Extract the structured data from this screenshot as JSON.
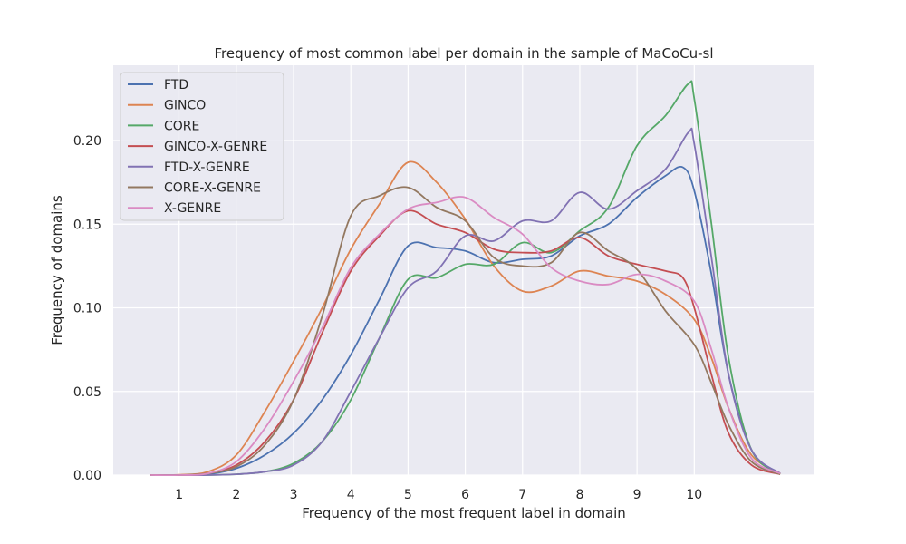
{
  "chart_data": {
    "type": "line",
    "title": "Frequency of most common label per domain in the sample of MaCoCu-sl",
    "xlabel": "Frequency of the most frequent label in domain",
    "ylabel": "Frequency of domains",
    "xlim": [
      -0.15,
      12.1
    ],
    "ylim": [
      0,
      0.245
    ],
    "xticks": [
      1,
      2,
      3,
      4,
      5,
      6,
      7,
      8,
      9,
      10
    ],
    "yticks": [
      0.0,
      0.05,
      0.1,
      0.15,
      0.2
    ],
    "ytick_labels": [
      "0.00",
      "0.05",
      "0.10",
      "0.15",
      "0.20"
    ],
    "grid": true,
    "legend_position": "top-left",
    "series": [
      {
        "name": "FTD",
        "color": "#4c72b0",
        "x": [
          0.5,
          1,
          1.5,
          2,
          2.5,
          3,
          3.5,
          4,
          4.5,
          5,
          5.5,
          6,
          6.5,
          7,
          7.5,
          8,
          8.5,
          9,
          9.5,
          9.8,
          10,
          10.3,
          10.6,
          11,
          11.5
        ],
        "y": [
          0.0,
          0.0,
          0.0005,
          0.004,
          0.012,
          0.025,
          0.045,
          0.072,
          0.105,
          0.137,
          0.136,
          0.134,
          0.127,
          0.129,
          0.131,
          0.143,
          0.15,
          0.166,
          0.179,
          0.184,
          0.17,
          0.12,
          0.06,
          0.015,
          0.001
        ]
      },
      {
        "name": "GINCO",
        "color": "#dd8452",
        "x": [
          0.5,
          1,
          1.5,
          2,
          2.5,
          3,
          3.5,
          4,
          4.5,
          5,
          5.5,
          6,
          6.5,
          7,
          7.5,
          8,
          8.5,
          9,
          9.5,
          10,
          10.3,
          10.6,
          11,
          11.5
        ],
        "y": [
          0.0,
          0.0002,
          0.002,
          0.012,
          0.038,
          0.068,
          0.1,
          0.135,
          0.162,
          0.187,
          0.175,
          0.153,
          0.125,
          0.11,
          0.113,
          0.122,
          0.119,
          0.116,
          0.108,
          0.093,
          0.07,
          0.04,
          0.012,
          0.001
        ]
      },
      {
        "name": "CORE",
        "color": "#55a868",
        "x": [
          0.5,
          1,
          1.5,
          2,
          2.5,
          3,
          3.5,
          4,
          4.5,
          5,
          5.5,
          6,
          6.5,
          7,
          7.5,
          8,
          8.5,
          9,
          9.5,
          9.9,
          10,
          10.3,
          10.6,
          11,
          11.5
        ],
        "y": [
          0.0,
          0.0,
          0.0,
          0.0005,
          0.002,
          0.007,
          0.02,
          0.045,
          0.082,
          0.117,
          0.118,
          0.126,
          0.126,
          0.139,
          0.133,
          0.146,
          0.16,
          0.197,
          0.215,
          0.234,
          0.225,
          0.15,
          0.07,
          0.015,
          0.001
        ]
      },
      {
        "name": "GINCO-X-GENRE",
        "color": "#c44e52",
        "x": [
          0.5,
          1,
          1.5,
          2,
          2.5,
          3,
          3.5,
          4,
          4.5,
          5,
          5.5,
          6,
          6.5,
          7,
          7.5,
          8,
          8.5,
          9,
          9.5,
          9.8,
          10,
          10.3,
          10.6,
          11,
          11.5
        ],
        "y": [
          0.0,
          0.0,
          0.001,
          0.006,
          0.02,
          0.045,
          0.085,
          0.122,
          0.143,
          0.158,
          0.15,
          0.145,
          0.135,
          0.133,
          0.134,
          0.142,
          0.131,
          0.126,
          0.122,
          0.118,
          0.1,
          0.06,
          0.025,
          0.006,
          0.0005
        ]
      },
      {
        "name": "FTD-X-GENRE",
        "color": "#8172b3",
        "x": [
          0.5,
          1,
          1.5,
          2,
          2.5,
          3,
          3.5,
          4,
          4.5,
          5,
          5.5,
          6,
          6.5,
          7,
          7.5,
          8,
          8.5,
          9,
          9.5,
          9.9,
          10,
          10.3,
          10.6,
          11,
          11.5
        ],
        "y": [
          0.0,
          0.0,
          0.0,
          0.0005,
          0.002,
          0.006,
          0.02,
          0.05,
          0.082,
          0.112,
          0.122,
          0.143,
          0.14,
          0.152,
          0.152,
          0.169,
          0.159,
          0.17,
          0.183,
          0.205,
          0.198,
          0.13,
          0.06,
          0.015,
          0.001
        ]
      },
      {
        "name": "CORE-X-GENRE",
        "color": "#937860",
        "x": [
          0.5,
          1,
          1.5,
          2,
          2.5,
          3,
          3.5,
          4,
          4.5,
          5,
          5.5,
          6,
          6.5,
          7,
          7.5,
          8,
          8.5,
          9,
          9.5,
          10,
          10.3,
          10.6,
          11,
          11.5
        ],
        "y": [
          0.0,
          0.0,
          0.001,
          0.005,
          0.018,
          0.045,
          0.095,
          0.155,
          0.167,
          0.172,
          0.16,
          0.152,
          0.13,
          0.125,
          0.127,
          0.145,
          0.134,
          0.123,
          0.098,
          0.078,
          0.055,
          0.03,
          0.008,
          0.0005
        ]
      },
      {
        "name": "X-GENRE",
        "color": "#da8bc3",
        "x": [
          0.5,
          1,
          1.5,
          2,
          2.5,
          3,
          3.5,
          4,
          4.5,
          5,
          5.5,
          6,
          6.5,
          7,
          7.5,
          8,
          8.5,
          9,
          9.5,
          10,
          10.3,
          10.6,
          11,
          11.5
        ],
        "y": [
          0.0,
          0.0,
          0.001,
          0.008,
          0.028,
          0.056,
          0.088,
          0.124,
          0.144,
          0.159,
          0.163,
          0.166,
          0.154,
          0.144,
          0.124,
          0.116,
          0.114,
          0.12,
          0.116,
          0.104,
          0.075,
          0.04,
          0.01,
          0.001
        ]
      }
    ]
  }
}
